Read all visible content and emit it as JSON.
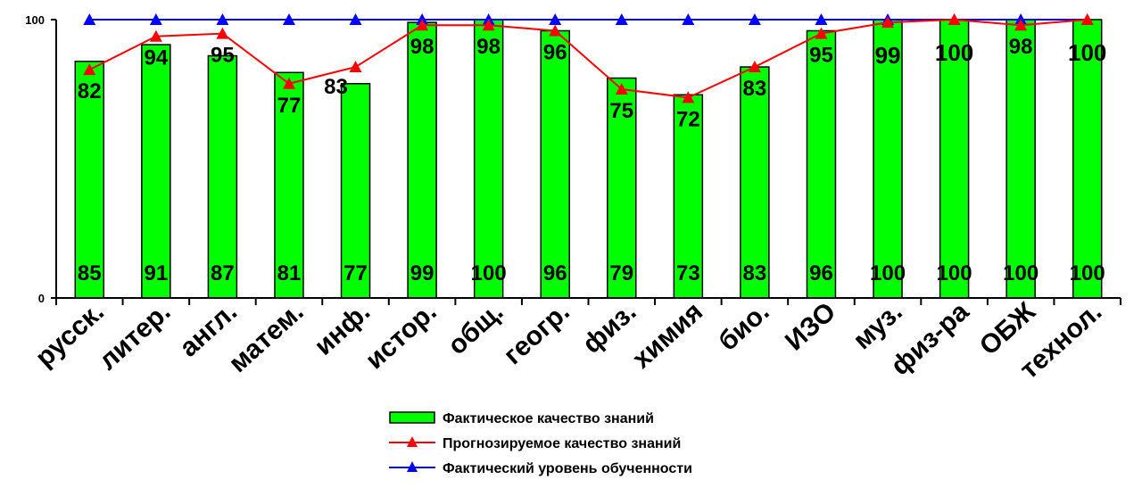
{
  "chart_data": {
    "type": "bar",
    "categories": [
      "русск.",
      "литер.",
      "англ.",
      "матем.",
      "инф.",
      "истор.",
      "общ.",
      "геогр.",
      "физ.",
      "химия",
      "био.",
      "ИЗО",
      "муз.",
      "физ-ра",
      "ОБЖ",
      "технол."
    ],
    "series": [
      {
        "name": "Фактическое качество знаний",
        "kind": "bar",
        "color": "#00ff00",
        "values": [
          85,
          91,
          87,
          81,
          77,
          99,
          100,
          96,
          79,
          73,
          83,
          96,
          100,
          100,
          100,
          100
        ]
      },
      {
        "name": "Прогнозируемое качество знаний",
        "kind": "line",
        "marker": "triangle",
        "color": "#ff0000",
        "values": [
          82,
          94,
          95,
          77,
          83,
          98,
          98,
          96,
          75,
          72,
          83,
          95,
          99,
          100,
          98,
          100
        ]
      },
      {
        "name": "Фактический уровень обученности",
        "kind": "line",
        "marker": "triangle",
        "color": "#0000ff",
        "values": [
          100,
          100,
          100,
          100,
          100,
          100,
          100,
          100,
          100,
          100,
          100,
          100,
          100,
          100,
          100,
          100
        ]
      }
    ],
    "yticks": [
      "0",
      "100"
    ],
    "ylim": [
      0,
      100
    ],
    "grid": false,
    "legend": "bottom-center"
  }
}
